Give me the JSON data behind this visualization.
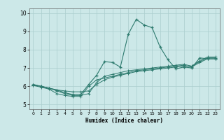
{
  "xlabel": "Humidex (Indice chaleur)",
  "bg_color": "#cce8e8",
  "grid_color": "#aacece",
  "line_color": "#2d7a6e",
  "xlim": [
    -0.5,
    23.5
  ],
  "ylim": [
    4.75,
    10.25
  ],
  "xticks": [
    0,
    1,
    2,
    3,
    4,
    5,
    6,
    7,
    8,
    9,
    10,
    11,
    12,
    13,
    14,
    15,
    16,
    17,
    18,
    19,
    20,
    21,
    22,
    23
  ],
  "yticks": [
    5,
    6,
    7,
    8,
    9,
    10
  ],
  "curves": {
    "line1": {
      "x": [
        0,
        1,
        2,
        3,
        4,
        5,
        6,
        7,
        8,
        9,
        10,
        11,
        12,
        13,
        14,
        15,
        16,
        17,
        18,
        19,
        20,
        21,
        22,
        23
      ],
      "y": [
        6.05,
        5.95,
        5.85,
        5.6,
        5.5,
        5.45,
        5.45,
        6.0,
        6.35,
        6.45,
        6.55,
        6.65,
        6.75,
        6.85,
        6.9,
        6.95,
        7.0,
        7.05,
        7.1,
        7.15,
        7.05,
        7.3,
        7.5,
        7.5
      ]
    },
    "line2": {
      "x": [
        0,
        1,
        2,
        3,
        4,
        5,
        6,
        7,
        8,
        9,
        10,
        11,
        12,
        13,
        14,
        15,
        16,
        17,
        18,
        19,
        20,
        21,
        22,
        23
      ],
      "y": [
        6.05,
        6.0,
        5.9,
        5.8,
        5.75,
        5.7,
        5.7,
        5.75,
        6.1,
        6.35,
        6.5,
        6.6,
        6.7,
        6.8,
        6.85,
        6.9,
        6.95,
        7.0,
        7.05,
        7.1,
        7.1,
        7.35,
        7.55,
        7.55
      ]
    },
    "line3": {
      "x": [
        0,
        1,
        2,
        3,
        4,
        5,
        6,
        7,
        8,
        9,
        10,
        11,
        12,
        13,
        14,
        15,
        16,
        17,
        18,
        19,
        20,
        21,
        22,
        23
      ],
      "y": [
        6.1,
        6.0,
        5.9,
        5.75,
        5.6,
        5.5,
        5.5,
        5.6,
        6.2,
        6.55,
        6.65,
        6.75,
        6.85,
        6.9,
        6.95,
        7.0,
        7.05,
        7.1,
        7.15,
        7.2,
        7.1,
        7.4,
        7.6,
        7.6
      ]
    },
    "line4": {
      "x": [
        0,
        1,
        2,
        3,
        4,
        5,
        6,
        7,
        8,
        9,
        10,
        11,
        12,
        13,
        14,
        15,
        16,
        17,
        18,
        19,
        20,
        21,
        22,
        23
      ],
      "y": [
        6.1,
        6.0,
        5.9,
        5.8,
        5.65,
        5.55,
        5.55,
        6.1,
        6.6,
        7.35,
        7.3,
        7.05,
        8.85,
        9.65,
        9.35,
        9.2,
        8.15,
        7.45,
        6.95,
        7.05,
        7.0,
        7.55,
        7.5,
        7.5
      ]
    }
  }
}
